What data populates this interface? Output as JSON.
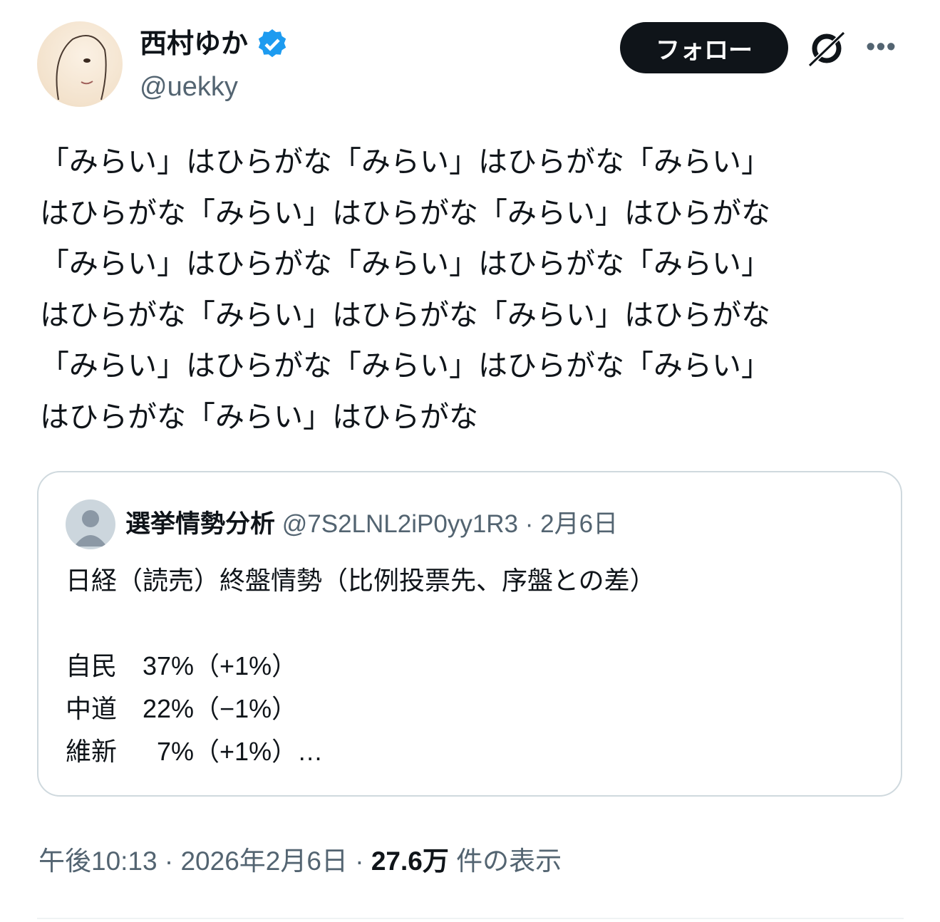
{
  "author": {
    "name": "西村ゆか",
    "handle": "@uekky",
    "verified": true,
    "verified_color": "#1d9bf0"
  },
  "actions": {
    "follow_label": "フォロー",
    "grok_icon": "grok-icon",
    "more_icon": "more-icon",
    "more_label": "•••"
  },
  "tweet": {
    "lines": [
      "「みらい」はひらがな「みらい」はひらがな「みらい」",
      "はひらがな「みらい」はひらがな「みらい」はひらがな",
      "「みらい」はひらがな「みらい」はひらがな「みらい」",
      "はひらがな「みらい」はひらがな「みらい」はひらがな",
      "「みらい」はひらがな「みらい」はひらがな「みらい」",
      "はひらがな「みらい」はひらがな"
    ]
  },
  "quote": {
    "name": "選挙情勢分析",
    "handle": "@7S2LNL2iP0yy1R3",
    "separator": "·",
    "date": "2月6日",
    "lines": [
      "日経（読売）終盤情勢（比例投票先、序盤との差）",
      "",
      "自民　37%（+1%）",
      "中道　22%（−1%）",
      "維新　  7%（+1%）…"
    ]
  },
  "footer": {
    "time": "午後10:13",
    "separator": " · ",
    "date": "2026年2月6日",
    "views": "27.6万",
    "views_label": " 件の表示"
  }
}
